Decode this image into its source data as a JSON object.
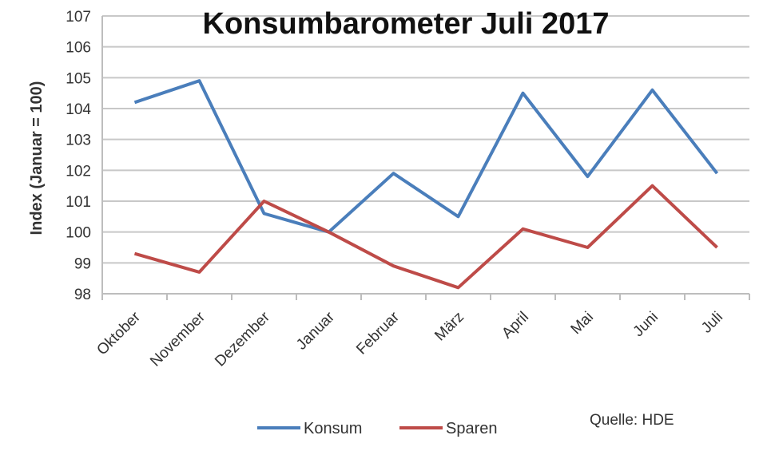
{
  "chart_data": {
    "type": "line",
    "title": "Konsumbarometer Juli 2017",
    "ylabel": "Index (Januar = 100)",
    "xlabel": "",
    "categories": [
      "Oktober",
      "November",
      "Dezember",
      "Januar",
      "Februar",
      "März",
      "April",
      "Mai",
      "Juni",
      "Juli"
    ],
    "ylim": [
      98,
      107
    ],
    "yticks": [
      98,
      99,
      100,
      101,
      102,
      103,
      104,
      105,
      106,
      107
    ],
    "grid": true,
    "legend_position": "bottom",
    "series": [
      {
        "name": "Konsum",
        "color": "#4a7ebb",
        "values": [
          104.2,
          104.9,
          100.6,
          100.0,
          101.9,
          100.5,
          104.5,
          101.8,
          104.6,
          101.9
        ]
      },
      {
        "name": "Sparen",
        "color": "#be4b48",
        "values": [
          99.3,
          98.7,
          101.0,
          100.0,
          98.9,
          98.2,
          100.1,
          99.5,
          101.5,
          99.5
        ]
      }
    ],
    "source": "Quelle: HDE"
  }
}
